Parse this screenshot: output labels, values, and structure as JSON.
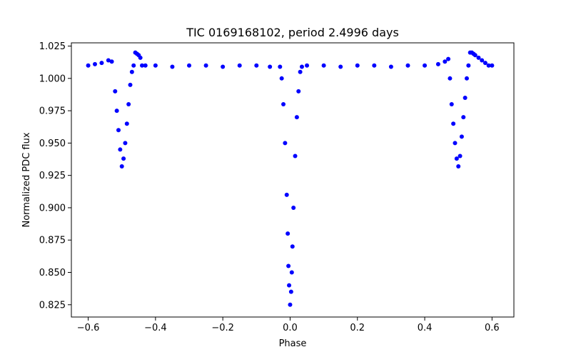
{
  "chart_data": {
    "type": "scatter",
    "title": "TIC 0169168102, period 2.4996 days",
    "xlabel": "Phase",
    "ylabel": "Normalized PDC flux",
    "xlim": [
      -0.65,
      0.665
    ],
    "ylim": [
      0.8155,
      1.0275
    ],
    "xticks": [
      -0.6,
      -0.4,
      -0.2,
      0.0,
      0.2,
      0.4,
      0.6
    ],
    "xtick_labels": [
      "−0.6",
      "−0.4",
      "−0.2",
      "0.0",
      "0.2",
      "0.4",
      "0.6"
    ],
    "yticks": [
      0.825,
      0.85,
      0.875,
      0.9,
      0.925,
      0.95,
      0.975,
      1.0,
      1.025
    ],
    "ytick_labels": [
      "0.825",
      "0.850",
      "0.875",
      "0.900",
      "0.925",
      "0.950",
      "0.975",
      "1.000",
      "1.025"
    ],
    "grid": false,
    "marker_color": "#0000ff",
    "series": [
      {
        "x": [
          -0.6,
          -0.58,
          -0.56,
          -0.54,
          -0.53,
          -0.52,
          -0.515,
          -0.51,
          -0.505,
          -0.5,
          -0.495,
          -0.49,
          -0.485,
          -0.48,
          -0.475,
          -0.47,
          -0.465,
          -0.46,
          -0.455,
          -0.45,
          -0.445,
          -0.44,
          -0.43,
          -0.4,
          -0.35,
          -0.3,
          -0.25,
          -0.2,
          -0.15,
          -0.1,
          -0.06,
          -0.03,
          -0.025,
          -0.02,
          -0.015,
          -0.01,
          -0.007,
          -0.005,
          -0.003,
          0.0,
          0.003,
          0.005,
          0.007,
          0.01,
          0.015,
          0.02,
          0.025,
          0.03,
          0.035,
          0.05,
          0.1,
          0.15,
          0.2,
          0.25,
          0.3,
          0.35,
          0.4,
          0.44,
          0.46,
          0.47,
          0.475,
          0.48,
          0.485,
          0.49,
          0.495,
          0.5,
          0.505,
          0.51,
          0.515,
          0.52,
          0.525,
          0.53,
          0.535,
          0.54,
          0.545,
          0.55,
          0.56,
          0.57,
          0.58,
          0.59,
          0.6
        ],
        "y": [
          1.01,
          1.011,
          1.012,
          1.014,
          1.013,
          0.99,
          0.975,
          0.96,
          0.945,
          0.932,
          0.938,
          0.95,
          0.965,
          0.98,
          0.995,
          1.005,
          1.01,
          1.02,
          1.019,
          1.018,
          1.016,
          1.01,
          1.01,
          1.01,
          1.009,
          1.01,
          1.01,
          1.009,
          1.01,
          1.01,
          1.009,
          1.009,
          1.0,
          0.98,
          0.95,
          0.91,
          0.88,
          0.855,
          0.84,
          0.825,
          0.835,
          0.85,
          0.87,
          0.9,
          0.94,
          0.97,
          0.99,
          1.005,
          1.009,
          1.01,
          1.01,
          1.009,
          1.01,
          1.01,
          1.009,
          1.01,
          1.01,
          1.011,
          1.013,
          1.015,
          1.0,
          0.98,
          0.965,
          0.95,
          0.938,
          0.932,
          0.94,
          0.955,
          0.97,
          0.985,
          1.0,
          1.01,
          1.02,
          1.02,
          1.019,
          1.018,
          1.016,
          1.014,
          1.012,
          1.01,
          1.01
        ]
      }
    ]
  }
}
